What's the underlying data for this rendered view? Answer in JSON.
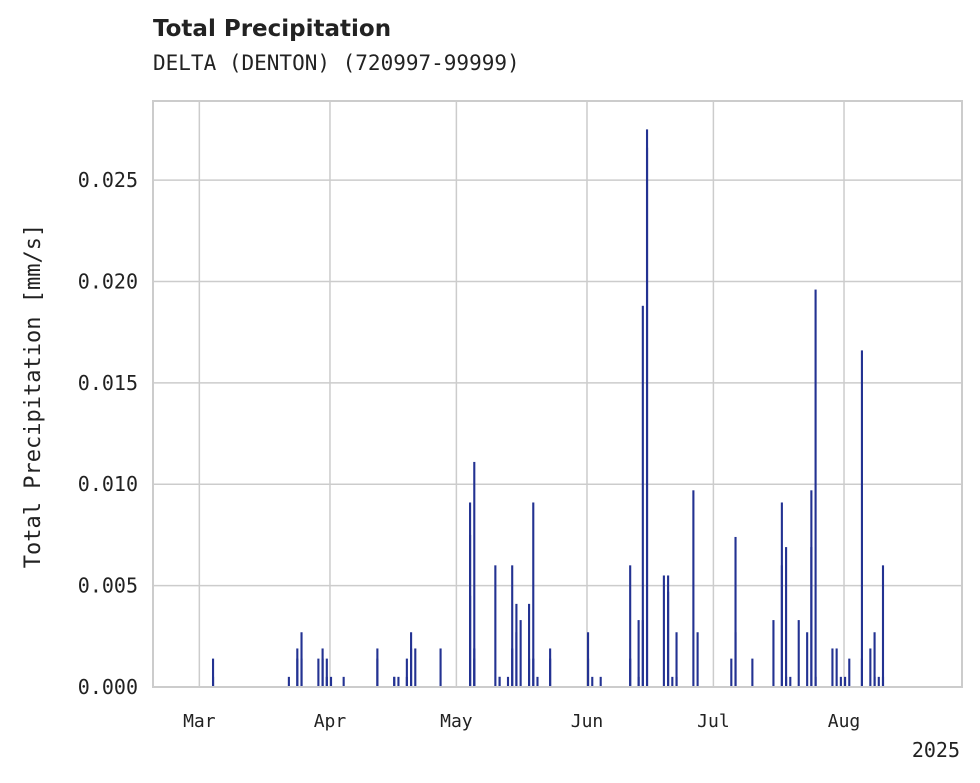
{
  "chart_data": {
    "type": "bar",
    "title": "Total Precipitation",
    "subtitle": "DELTA (DENTON) (720997-99999)",
    "ylabel": "Total Precipitation [mm/s]",
    "xlabel": "",
    "year_label": "2025",
    "y_ticks": [
      "0.000",
      "0.005",
      "0.010",
      "0.015",
      "0.020",
      "0.025"
    ],
    "x_ticks": [
      {
        "date": "2025-03-01",
        "label": "Mar"
      },
      {
        "date": "2025-04-01",
        "label": "Apr"
      },
      {
        "date": "2025-05-01",
        "label": "May"
      },
      {
        "date": "2025-06-01",
        "label": "Jun"
      },
      {
        "date": "2025-07-01",
        "label": "Jul"
      },
      {
        "date": "2025-08-01",
        "label": "Aug"
      }
    ],
    "xlim": [
      "2025-02-18",
      "2025-08-29"
    ],
    "ylim": [
      0,
      0.0289
    ],
    "grid": true,
    "color": "#233292",
    "points": [
      {
        "x": "2025-03-04",
        "y": 0.0014
      },
      {
        "x": "2025-03-04",
        "y": 0.0005
      },
      {
        "x": "2025-03-22",
        "y": 0.0005
      },
      {
        "x": "2025-03-24",
        "y": 0.0019
      },
      {
        "x": "2025-03-24",
        "y": 0.0014
      },
      {
        "x": "2025-03-25",
        "y": 0.0027
      },
      {
        "x": "2025-03-25",
        "y": 0.0014
      },
      {
        "x": "2025-03-29",
        "y": 0.0014
      },
      {
        "x": "2025-03-30",
        "y": 0.0019
      },
      {
        "x": "2025-03-30",
        "y": 0.0014
      },
      {
        "x": "2025-03-31",
        "y": 0.0014
      },
      {
        "x": "2025-03-31",
        "y": 0.0005
      },
      {
        "x": "2025-04-01",
        "y": 0.0005
      },
      {
        "x": "2025-04-04",
        "y": 0.0005
      },
      {
        "x": "2025-04-12",
        "y": 0.0019
      },
      {
        "x": "2025-04-12",
        "y": 0.0014
      },
      {
        "x": "2025-04-16",
        "y": 0.0005
      },
      {
        "x": "2025-04-16",
        "y": 0.0005
      },
      {
        "x": "2025-04-17",
        "y": 0.0005
      },
      {
        "x": "2025-04-19",
        "y": 0.0005
      },
      {
        "x": "2025-04-19",
        "y": 0.0014
      },
      {
        "x": "2025-04-20",
        "y": 0.0027
      },
      {
        "x": "2025-04-20",
        "y": 0.0019
      },
      {
        "x": "2025-04-21",
        "y": 0.0019
      },
      {
        "x": "2025-04-27",
        "y": 0.0019
      },
      {
        "x": "2025-05-04",
        "y": 0.0045
      },
      {
        "x": "2025-05-04",
        "y": 0.0075
      },
      {
        "x": "2025-05-04",
        "y": 0.0091
      },
      {
        "x": "2025-05-05",
        "y": 0.0111
      },
      {
        "x": "2025-05-05",
        "y": 0.0019
      },
      {
        "x": "2025-05-05",
        "y": 0.0014
      },
      {
        "x": "2025-05-10",
        "y": 0.006
      },
      {
        "x": "2025-05-11",
        "y": 0.0005
      },
      {
        "x": "2025-05-11",
        "y": 0.0005
      },
      {
        "x": "2025-05-13",
        "y": 0.0005
      },
      {
        "x": "2025-05-14",
        "y": 0.0019
      },
      {
        "x": "2025-05-14",
        "y": 0.006
      },
      {
        "x": "2025-05-15",
        "y": 0.0041
      },
      {
        "x": "2025-05-15",
        "y": 0.0027
      },
      {
        "x": "2025-05-16",
        "y": 0.0033
      },
      {
        "x": "2025-05-18",
        "y": 0.0014
      },
      {
        "x": "2025-05-18",
        "y": 0.0041
      },
      {
        "x": "2025-05-19",
        "y": 0.0091
      },
      {
        "x": "2025-05-19",
        "y": 0.0014
      },
      {
        "x": "2025-05-20",
        "y": 0.0005
      },
      {
        "x": "2025-05-23",
        "y": 0.0014
      },
      {
        "x": "2025-05-23",
        "y": 0.0019
      },
      {
        "x": "2025-06-01",
        "y": 0.0014
      },
      {
        "x": "2025-06-01",
        "y": 0.0027
      },
      {
        "x": "2025-06-02",
        "y": 0.0005
      },
      {
        "x": "2025-06-04",
        "y": 0.0005
      },
      {
        "x": "2025-06-11",
        "y": 0.0014
      },
      {
        "x": "2025-06-11",
        "y": 0.006
      },
      {
        "x": "2025-06-13",
        "y": 0.0005
      },
      {
        "x": "2025-06-13",
        "y": 0.0033
      },
      {
        "x": "2025-06-14",
        "y": 0.0188
      },
      {
        "x": "2025-06-14",
        "y": 0.0033
      },
      {
        "x": "2025-06-15",
        "y": 0.0266
      },
      {
        "x": "2025-06-15",
        "y": 0.0275
      },
      {
        "x": "2025-06-19",
        "y": 0.0055
      },
      {
        "x": "2025-06-20",
        "y": 0.0047
      },
      {
        "x": "2025-06-20",
        "y": 0.0055
      },
      {
        "x": "2025-06-21",
        "y": 0.0005
      },
      {
        "x": "2025-06-22",
        "y": 0.0027
      },
      {
        "x": "2025-06-22",
        "y": 0.0005
      },
      {
        "x": "2025-06-26",
        "y": 0.0097
      },
      {
        "x": "2025-06-27",
        "y": 0.0027
      },
      {
        "x": "2025-07-05",
        "y": 0.0014
      },
      {
        "x": "2025-07-06",
        "y": 0.0027
      },
      {
        "x": "2025-07-06",
        "y": 0.0074
      },
      {
        "x": "2025-07-10",
        "y": 0.0014
      },
      {
        "x": "2025-07-15",
        "y": 0.0033
      },
      {
        "x": "2025-07-17",
        "y": 0.006
      },
      {
        "x": "2025-07-17",
        "y": 0.0091
      },
      {
        "x": "2025-07-18",
        "y": 0.0069
      },
      {
        "x": "2025-07-18",
        "y": 0.0005
      },
      {
        "x": "2025-07-19",
        "y": 0.0005
      },
      {
        "x": "2025-07-21",
        "y": 0.0033
      },
      {
        "x": "2025-07-23",
        "y": 0.0027
      },
      {
        "x": "2025-07-24",
        "y": 0.0069
      },
      {
        "x": "2025-07-24",
        "y": 0.0097
      },
      {
        "x": "2025-07-25",
        "y": 0.0196
      },
      {
        "x": "2025-07-25",
        "y": 0.0005
      },
      {
        "x": "2025-07-29",
        "y": 0.0019
      },
      {
        "x": "2025-07-30",
        "y": 0.0019
      },
      {
        "x": "2025-07-31",
        "y": 0.0005
      },
      {
        "x": "2025-08-01",
        "y": 0.0005
      },
      {
        "x": "2025-08-02",
        "y": 0.0014
      },
      {
        "x": "2025-08-05",
        "y": 0.0166
      },
      {
        "x": "2025-08-05",
        "y": 0.0014
      },
      {
        "x": "2025-08-07",
        "y": 0.0019
      },
      {
        "x": "2025-08-08",
        "y": 0.0027
      },
      {
        "x": "2025-08-08",
        "y": 0.0005
      },
      {
        "x": "2025-08-09",
        "y": 0.0005
      },
      {
        "x": "2025-08-10",
        "y": 0.006
      },
      {
        "x": "2025-08-10",
        "y": 0.0005
      }
    ]
  }
}
